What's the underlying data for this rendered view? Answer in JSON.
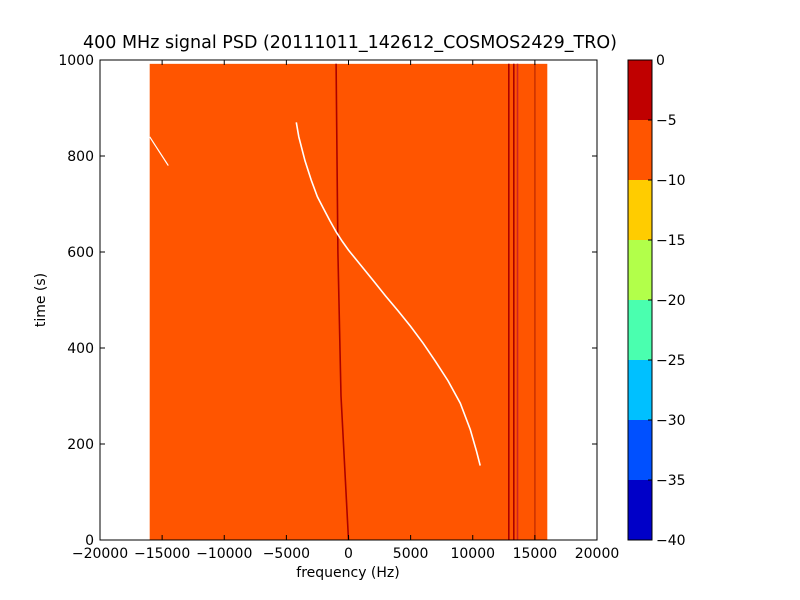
{
  "chart_data": {
    "type": "heatmap",
    "title": "400 MHz signal PSD (20111011_142612_COSMOS2429_TRO)",
    "xlabel": "frequency (Hz)",
    "ylabel": "time (s)",
    "xlim": [
      -20000,
      20000
    ],
    "ylim": [
      0,
      1000
    ],
    "x_ticks": [
      -20000,
      -15000,
      -10000,
      -5000,
      0,
      5000,
      10000,
      15000,
      20000
    ],
    "x_tick_labels": [
      "−20000",
      "−15000",
      "−10000",
      "−5000",
      "0",
      "5000",
      "10000",
      "15000",
      "20000"
    ],
    "y_ticks": [
      0,
      200,
      400,
      600,
      800,
      1000
    ],
    "y_tick_labels": [
      "0",
      "200",
      "400",
      "600",
      "800",
      "1000"
    ],
    "grid": false,
    "data_extent": {
      "freq_min": -16000,
      "freq_max": 16000,
      "time_min": 0,
      "time_max": 992
    },
    "background_level_range": [
      -10,
      -5
    ],
    "features": {
      "doppler_trace": {
        "color": "#ffffff",
        "points": [
          [
            -4200,
            870
          ],
          [
            -4000,
            840
          ],
          [
            -3500,
            790
          ],
          [
            -3000,
            750
          ],
          [
            -2500,
            715
          ],
          [
            -2000,
            690
          ],
          [
            -1500,
            665
          ],
          [
            -1000,
            642
          ],
          [
            -500,
            622
          ],
          [
            0,
            604
          ],
          [
            500,
            588
          ],
          [
            1000,
            572
          ],
          [
            2000,
            540
          ],
          [
            3000,
            508
          ],
          [
            4000,
            477
          ],
          [
            5000,
            445
          ],
          [
            6000,
            410
          ],
          [
            7000,
            372
          ],
          [
            8000,
            332
          ],
          [
            9000,
            285
          ],
          [
            9800,
            230
          ],
          [
            10300,
            185
          ],
          [
            10600,
            155
          ]
        ]
      },
      "left_edge_trace": {
        "color": "#ffffff",
        "points": [
          [
            -16000,
            840
          ],
          [
            -15500,
            820
          ],
          [
            -15000,
            800
          ],
          [
            -14500,
            780
          ]
        ]
      },
      "vertical_lines": [
        {
          "color": "#aa0000",
          "points": [
            [
              -1000,
              992
            ],
            [
              -850,
              600
            ],
            [
              -600,
              300
            ],
            [
              0,
              0
            ]
          ]
        },
        {
          "color": "#aa0000",
          "points": [
            [
              12900,
              992
            ],
            [
              12900,
              0
            ]
          ]
        },
        {
          "color": "#aa0000",
          "points": [
            [
              13300,
              992
            ],
            [
              13300,
              0
            ]
          ]
        },
        {
          "color": "#cc2222",
          "points": [
            [
              13600,
              992
            ],
            [
              13600,
              0
            ]
          ]
        },
        {
          "color": "#cc3300",
          "points": [
            [
              15000,
              992
            ],
            [
              15000,
              0
            ]
          ]
        }
      ]
    },
    "colorbar": {
      "min": -40,
      "max": 0,
      "tick_values": [
        0,
        -5,
        -10,
        -15,
        -20,
        -25,
        -30,
        -35,
        -40
      ],
      "tick_labels": [
        "0",
        "−5",
        "−10",
        "−15",
        "−20",
        "−25",
        "−30",
        "−35",
        "−40"
      ],
      "bands": [
        {
          "from": -5,
          "to": 0,
          "color": "#c00000"
        },
        {
          "from": -10,
          "to": -5,
          "color": "#ff5500"
        },
        {
          "from": -15,
          "to": -10,
          "color": "#ffcc00"
        },
        {
          "from": -20,
          "to": -15,
          "color": "#b2ff4a"
        },
        {
          "from": -25,
          "to": -20,
          "color": "#4affaf"
        },
        {
          "from": -30,
          "to": -25,
          "color": "#00c0ff"
        },
        {
          "from": -35,
          "to": -30,
          "color": "#0050ff"
        },
        {
          "from": -40,
          "to": -35,
          "color": "#0000c8"
        }
      ]
    }
  }
}
